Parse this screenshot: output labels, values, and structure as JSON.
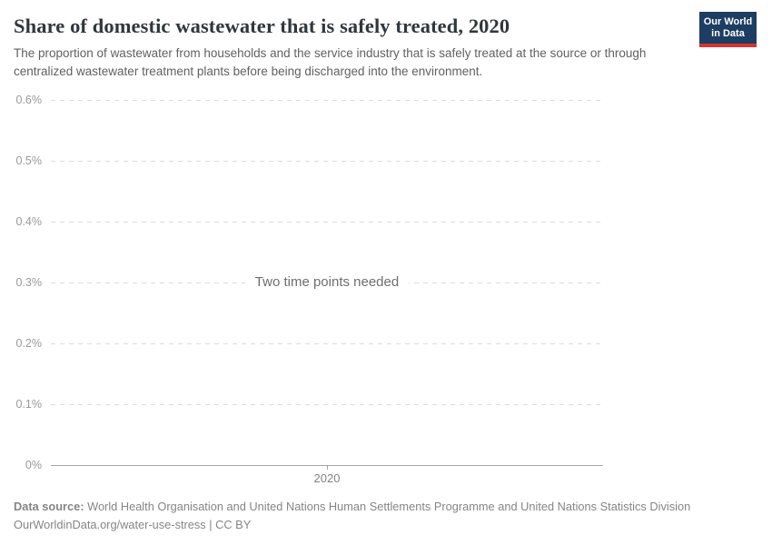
{
  "header": {
    "title": "Share of domestic wastewater that is safely treated, 2020",
    "subtitle": "The proportion of wastewater from households and the service industry that is safely treated at the source or through centralized wastewater treatment plants before being discharged into the environment.",
    "logo_line1": "Our World",
    "logo_line2": "in Data"
  },
  "chart_data": {
    "type": "line",
    "title": "Share of domestic wastewater that is safely treated, 2020",
    "series": [],
    "message": "Two time points needed",
    "x_ticks": [
      "2020"
    ],
    "y_ticks": [
      {
        "label": "0%",
        "value": 0
      },
      {
        "label": "0.1%",
        "value": 0.1
      },
      {
        "label": "0.2%",
        "value": 0.2
      },
      {
        "label": "0.3%",
        "value": 0.3
      },
      {
        "label": "0.4%",
        "value": 0.4
      },
      {
        "label": "0.5%",
        "value": 0.5
      },
      {
        "label": "0.6%",
        "value": 0.6
      }
    ],
    "ylim": [
      0,
      0.6
    ],
    "xlabel": "",
    "ylabel": "",
    "grid": "horizontal-dashed",
    "legend": "none"
  },
  "footer": {
    "source_label": "Data source:",
    "source_text": "World Health Organisation and United Nations Human Settlements Programme and United Nations Statistics Division",
    "license_line": "OurWorldinData.org/water-use-stress | CC BY"
  },
  "colors": {
    "logo_bg": "#1d3d63",
    "logo_stripe": "#d7352e",
    "title_text": "#30373c",
    "subtitle_text": "#616161",
    "tick_label": "#999999",
    "gridline": "#dddddd",
    "axis_line": "#a5a5a5",
    "message_text": "#6e6e6e",
    "footer_text": "#858585"
  }
}
